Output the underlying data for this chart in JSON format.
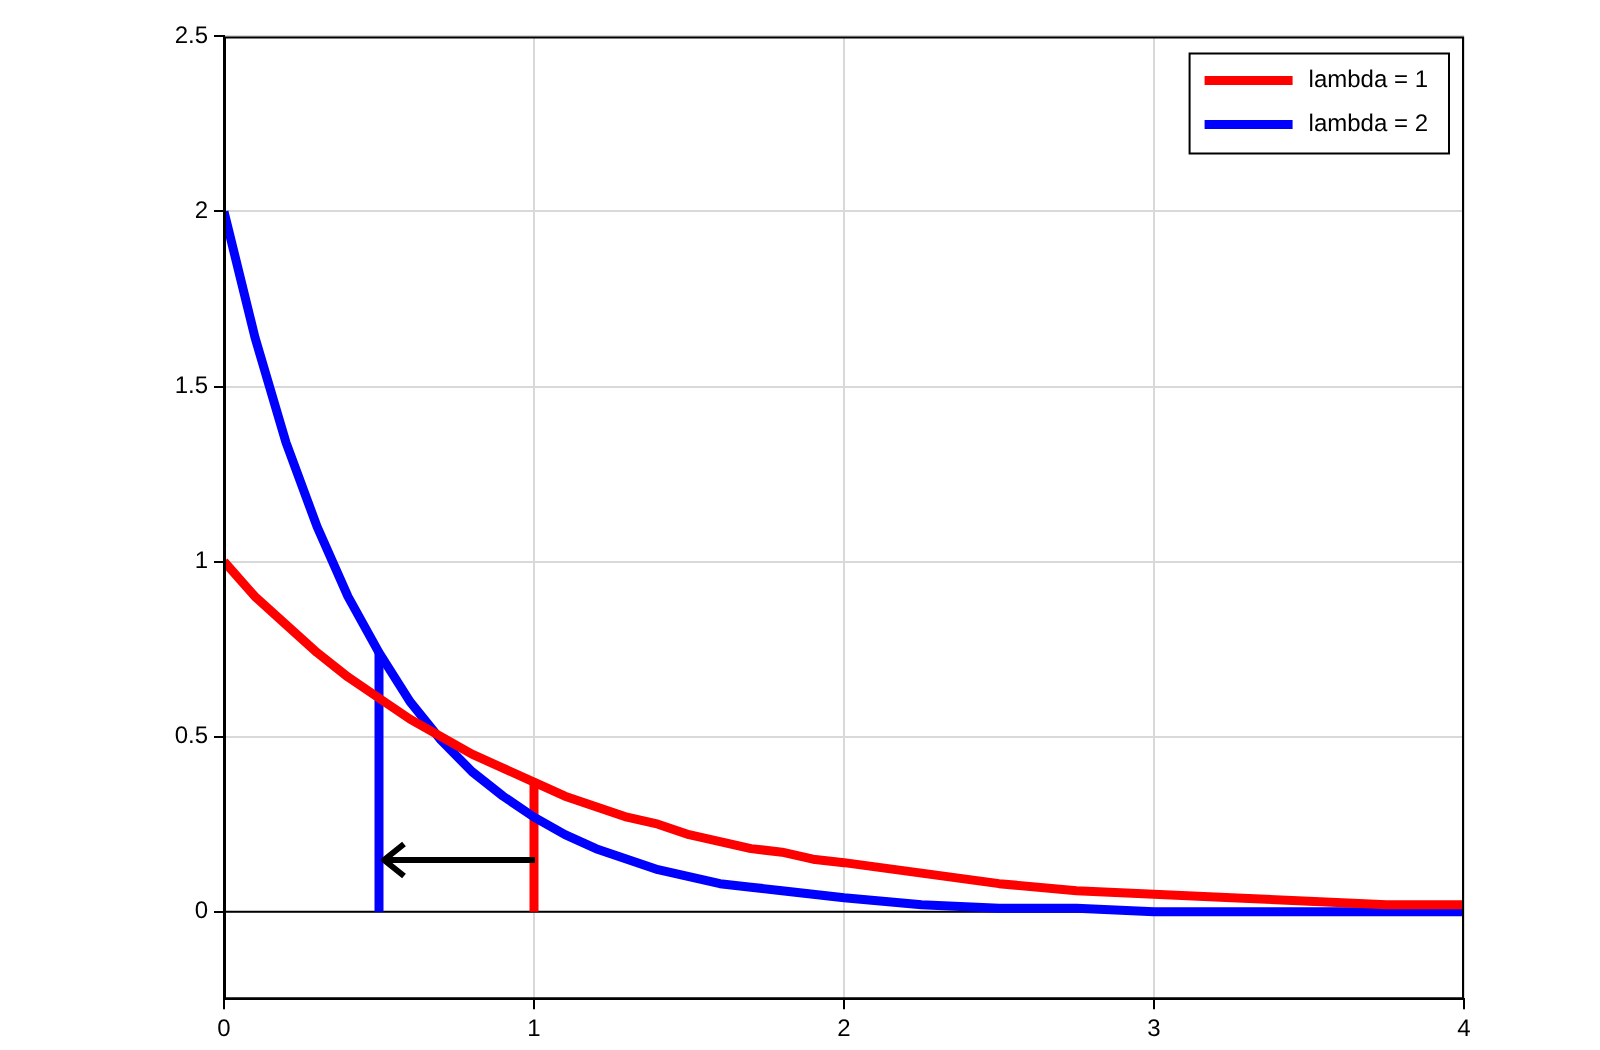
{
  "chart_data": {
    "type": "line",
    "xlim": [
      0,
      4
    ],
    "ylim": [
      -0.25,
      2.5
    ],
    "xticks": [
      0,
      1,
      2,
      3,
      4
    ],
    "yticks": [
      0,
      0.5,
      1,
      1.5,
      2,
      2.5
    ],
    "grid": true,
    "legend": "top right",
    "line_style": "solid",
    "marker": "none",
    "series": [
      {
        "name": "lambda = 1",
        "color": "#ff0000",
        "x": [
          0,
          0.1,
          0.2,
          0.3,
          0.4,
          0.5,
          0.6,
          0.7,
          0.8,
          0.9,
          1,
          1.1,
          1.2,
          1.3,
          1.4,
          1.5,
          1.6,
          1.7,
          1.8,
          1.9,
          2,
          2.25,
          2.5,
          2.75,
          3,
          3.25,
          3.5,
          3.75,
          4
        ],
        "values": [
          1,
          0.9,
          0.82,
          0.74,
          0.67,
          0.61,
          0.55,
          0.5,
          0.45,
          0.41,
          0.37,
          0.33,
          0.3,
          0.27,
          0.25,
          0.22,
          0.2,
          0.18,
          0.17,
          0.15,
          0.14,
          0.11,
          0.08,
          0.06,
          0.05,
          0.04,
          0.03,
          0.02,
          0.02
        ]
      },
      {
        "name": "lambda = 2",
        "color": "#0000ff",
        "x": [
          0,
          0.1,
          0.2,
          0.3,
          0.4,
          0.5,
          0.6,
          0.7,
          0.8,
          0.9,
          1,
          1.1,
          1.2,
          1.3,
          1.4,
          1.5,
          1.6,
          1.7,
          1.8,
          1.9,
          2,
          2.25,
          2.5,
          2.75,
          3,
          3.25,
          3.5,
          3.75,
          4
        ],
        "values": [
          2,
          1.64,
          1.34,
          1.1,
          0.9,
          0.74,
          0.6,
          0.49,
          0.4,
          0.33,
          0.27,
          0.22,
          0.18,
          0.15,
          0.12,
          0.1,
          0.08,
          0.07,
          0.06,
          0.05,
          0.04,
          0.02,
          0.01,
          0.01,
          0,
          0,
          0,
          0,
          0
        ]
      },
      {
        "type": "line",
        "color": "#ff0000",
        "x": [
          1,
          1
        ],
        "values": [
          0,
          0.37
        ]
      },
      {
        "type": "line",
        "color": "#0000ff",
        "x": [
          0.5,
          0.5
        ],
        "values": [
          0,
          0.74
        ]
      }
    ],
    "ref_lines": [
      {
        "axis": "y",
        "value": 0,
        "color": "#000000"
      }
    ]
  }
}
